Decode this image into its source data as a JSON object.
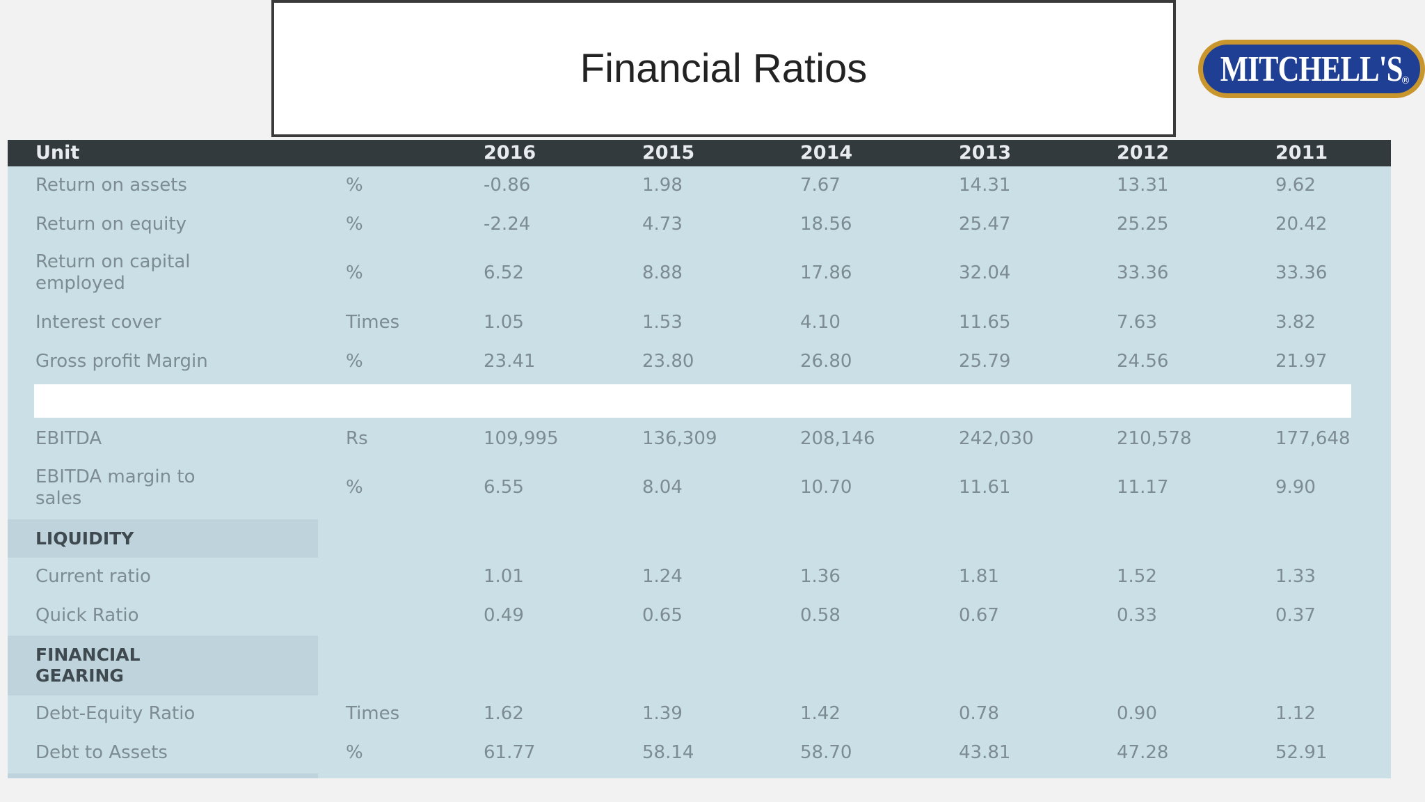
{
  "title": "Financial Ratios",
  "logo": {
    "text": "MITCHELL'S",
    "registered_mark": "®",
    "colors": {
      "fill": "#1f3f95",
      "border": "#c8962c",
      "text": "#ffffff"
    }
  },
  "colors": {
    "header_bg": "#333a3e",
    "table_bg": "#cadfe6",
    "section_bg": "#bfd3dc"
  },
  "table": {
    "header": {
      "label": "Unit",
      "years": [
        "2016",
        "2015",
        "2014",
        "2013",
        "2012",
        "2011"
      ]
    },
    "rows": [
      {
        "label": "Return on assets",
        "unit": "%",
        "values": [
          "-0.86",
          "1.98",
          "7.67",
          "14.31",
          "13.31",
          "9.62"
        ]
      },
      {
        "label": "Return on equity",
        "unit": "%",
        "values": [
          "-2.24",
          "4.73",
          "18.56",
          "25.47",
          "25.25",
          "20.42"
        ]
      },
      {
        "label": "Return on capital employed",
        "label_lines": [
          "Return on capital",
          "employed"
        ],
        "unit": "%",
        "values": [
          "6.52",
          "8.88",
          "17.86",
          "32.04",
          "33.36",
          "33.36"
        ]
      },
      {
        "label": "Interest cover",
        "unit": "Times",
        "values": [
          "1.05",
          "1.53",
          "4.10",
          "11.65",
          "7.63",
          "3.82"
        ]
      },
      {
        "label": "Gross profit Margin",
        "unit": "%",
        "values": [
          "23.41",
          "23.80",
          "26.80",
          "25.79",
          "24.56",
          "21.97"
        ]
      },
      {
        "label": "EBITDA",
        "unit": "Rs",
        "values": [
          "109,995",
          "136,309",
          "208,146",
          "242,030",
          "210,578",
          "177,648"
        ]
      },
      {
        "label": "EBITDA margin to sales",
        "label_lines": [
          "EBITDA margin to",
          "sales"
        ],
        "unit": "%",
        "values": [
          "6.55",
          "8.04",
          "10.70",
          "11.61",
          "11.17",
          "9.90"
        ]
      }
    ],
    "liquidity": {
      "label": "LIQUIDITY",
      "rows": [
        {
          "label": "Current ratio",
          "unit": "",
          "values": [
            "1.01",
            "1.24",
            "1.36",
            "1.81",
            "1.52",
            "1.33"
          ]
        },
        {
          "label": "Quick Ratio",
          "unit": "",
          "values": [
            "0.49",
            "0.65",
            "0.58",
            "0.67",
            "0.33",
            "0.37"
          ]
        }
      ]
    },
    "gearing": {
      "label_lines": [
        "FINANCIAL",
        "GEARING"
      ],
      "rows": [
        {
          "label": "Debt-Equity Ratio",
          "unit": "Times",
          "values": [
            "1.62",
            "1.39",
            "1.42",
            "0.78",
            "0.90",
            "1.12"
          ]
        },
        {
          "label": "Debt to Assets",
          "unit": "%",
          "values": [
            "61.77",
            "58.14",
            "58.70",
            "43.81",
            "47.28",
            "52.91"
          ]
        }
      ]
    }
  }
}
